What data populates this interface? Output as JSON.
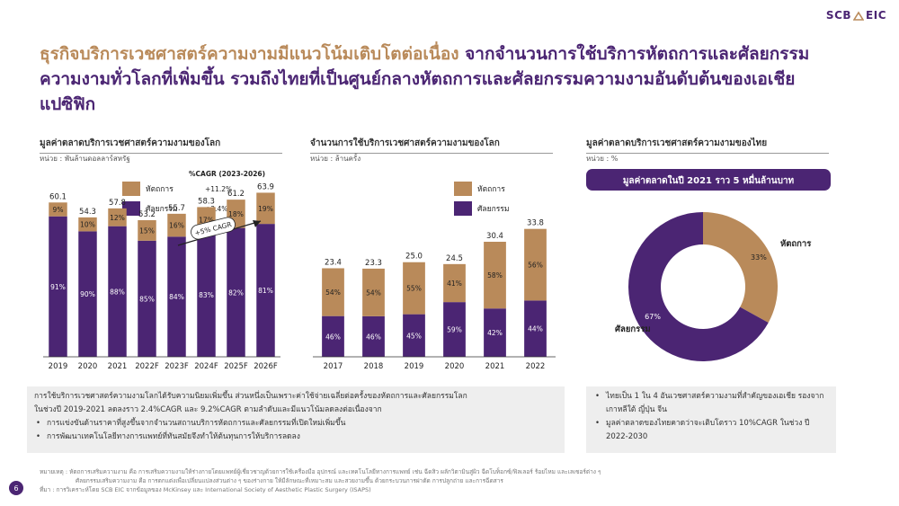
{
  "brand": {
    "logo_text_left": "SCB",
    "logo_text_right": "EIC",
    "logo_icon": "house-icon",
    "accent": "#4b2573",
    "secondary": "#b98a5a"
  },
  "headline": {
    "part1": "ธุรกิจบริการเวชศาสตร์ความงามมีแนวโน้มเติบโตต่อเนื่อง",
    "part2": " จากจำนวนการใช้บริการหัตถการและศัลยกรรมความงามทั่วโลกที่เพิ่มขึ้น รวมถึงไทยที่เป็นศูนย์กลางหัตถการและศัลยกรรมความงามอันดับต้นของเอเชียแปซิฟิก"
  },
  "chart_data": [
    {
      "id": "global-market",
      "type": "bar",
      "title": "มูลค่าตลาดบริการเวชศาสตร์ความงามของโลก",
      "unit": "หน่วย : พันล้านดอลลาร์สหรัฐ",
      "cagr_title": "%CAGR (2023-2026)",
      "categories": [
        "2019",
        "2020",
        "2021",
        "2022F",
        "2023F",
        "2024F",
        "2025F",
        "2026F"
      ],
      "totals": [
        60.1,
        54.3,
        57.8,
        53.2,
        55.7,
        58.3,
        61.2,
        63.9
      ],
      "total_labels": [
        "60.1",
        "54.3",
        "57.8",
        "53.2",
        "55.7",
        "58.3",
        "61.2",
        "63.9"
      ],
      "series": [
        {
          "name": "หัตถการ",
          "color": "#b98a5a",
          "cagr": "+11.2%",
          "shares": [
            9,
            10,
            12,
            15,
            16,
            17,
            18,
            19
          ],
          "labels": [
            "9%",
            "10%",
            "12%",
            "15%",
            "16%",
            "17%",
            "18%",
            "19%"
          ]
        },
        {
          "name": "ศัลยกรรม",
          "color": "#4b2573",
          "cagr": "+3.4%",
          "shares": [
            91,
            90,
            88,
            85,
            84,
            83,
            82,
            81
          ],
          "labels": [
            "91%",
            "90%",
            "88%",
            "85%",
            "84%",
            "83%",
            "82%",
            "81%"
          ]
        }
      ],
      "annotation": "+5% CAGR",
      "ylim": [
        0,
        70
      ]
    },
    {
      "id": "global-procedures",
      "type": "bar",
      "title": "จำนวนการใช้บริการเวชศาสตร์ความงามของโลก",
      "unit": "หน่วย : ล้านครั้ง",
      "categories": [
        "2017",
        "2018",
        "2019",
        "2020",
        "2021",
        "2022"
      ],
      "totals": [
        23.4,
        23.3,
        25.0,
        24.5,
        30.4,
        33.8
      ],
      "total_labels": [
        "23.4",
        "23.3",
        "25.0",
        "24.5",
        "30.4",
        "33.8"
      ],
      "series": [
        {
          "name": "หัตถการ",
          "color": "#b98a5a",
          "shares": [
            54,
            54,
            55,
            41,
            58,
            56
          ],
          "labels": [
            "54%",
            "54%",
            "55%",
            "41%",
            "58%",
            "56%"
          ]
        },
        {
          "name": "ศัลยกรรม",
          "color": "#4b2573",
          "shares": [
            46,
            46,
            45,
            59,
            42,
            44
          ],
          "labels": [
            "46%",
            "46%",
            "45%",
            "59%",
            "42%",
            "44%"
          ]
        }
      ],
      "ylim": [
        0,
        38
      ]
    },
    {
      "id": "thai-market",
      "type": "pie",
      "title": "มูลค่าตลาดบริการเวชศาสตร์ความงามของไทย",
      "unit": "หน่วย : %",
      "banner": "มูลค่าตลาดในปี 2021 ราว 5 หมื่นล้านบาท",
      "slices": [
        {
          "name": "หัตถการ",
          "value": 33,
          "label": "33%",
          "color": "#b98a5a"
        },
        {
          "name": "ศัลยกรรม",
          "value": 67,
          "label": "67%",
          "color": "#4b2573"
        }
      ]
    }
  ],
  "notes_left": {
    "line1": "การใช้บริการเวชศาสตร์ความงามโลกได้รับความนิยมเพิ่มขึ้น ส่วนหนึ่งเป็นเพราะค่าใช้จ่ายเฉลี่ยต่อครั้งของหัตถการและศัลยกรรมโลก",
    "line2": "ในช่วงปี 2019-2021 ลดลงราว 2.4%CAGR และ 9.2%CAGR ตามลำดับและมีแนวโน้มลดลงต่อเนื่องจาก",
    "bullets": [
      "การแข่งขันด้านราคาที่สูงขึ้นจากจำนวนสถานบริการหัตถการและศัลยกรรมที่เปิดใหม่เพิ่มขึ้น",
      "การพัฒนาเทคโนโลยีทางการแพทย์ที่ทันสมัยจึงทำให้ต้นทุนการให้บริการลดลง"
    ]
  },
  "notes_right": {
    "bullets": [
      "ไทยเป็น 1 ใน 4 อันเวชศาสตร์ความงามที่สำคัญของเอเชีย รองจากเกาหลีใต้ ญี่ปุ่น จีน",
      "มูลค่าตลาดของไทยคาดว่าจะเติบโตราว 10%CAGR ในช่วง ปี 2022-2030"
    ]
  },
  "footnotes": {
    "line1": "หมายเหตุ : หัตถการเสริมความงาม คือ การเสริมความงามให้ร่างกายโดยแพทย์ผู้เชี่ยวชาญด้วยการใช้เครื่องมือ อุปกรณ์ และเทคโนโลยีทางการแพทย์ เช่น ฉีดสิว ผลักวิตามินสู่ผิว ฉีดโบท็อกซ์/ฟิลเลอร์ ร้อยไหม และเลเซอร์ต่าง ๆ",
    "line2": "ศัลยกรรมเสริมความงาม คือ การตกแต่งเพื่อเปลี่ยนแปลงส่วนต่าง ๆ ของร่างกาย ให้มีลักษณะที่เหมาะสม และสวยงามขึ้น ด้วยกระบวนการผ่าตัด การปลูกถ่าย และการฉีดสาร",
    "line3": "ที่มา : การวิเคราะห์โดย SCB EIC จากข้อมูลของ McKinsey และ International Society of Aesthetic Plastic Surgery (ISAPS)"
  },
  "page_number": "6"
}
